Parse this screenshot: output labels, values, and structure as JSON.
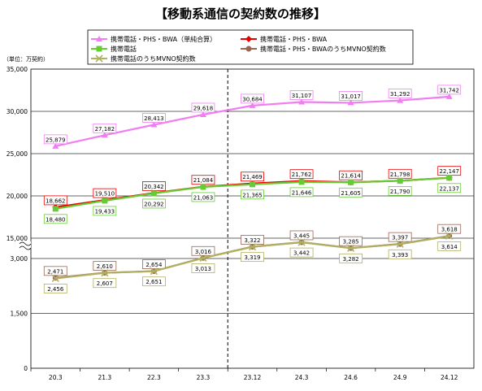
{
  "title": "【移動系通信の契約数の推移】",
  "unit_label": "（単位：万契約）",
  "chart_data": {
    "type": "line",
    "title": "【移動系通信の契約数の推移】",
    "ylabel": "（単位：万契約）",
    "categories": [
      "20.3",
      "21.3",
      "22.3",
      "23.3",
      "23.12",
      "24.3",
      "24.6",
      "24.9",
      "24.12"
    ],
    "ylim": [
      0,
      35000
    ],
    "axis_break": {
      "below": [
        0,
        3000
      ],
      "above": [
        15000,
        35000
      ]
    },
    "y_ticks": [
      {
        "value": 0,
        "label": "0"
      },
      {
        "value": 1500,
        "label": "1,500"
      },
      {
        "value": 3000,
        "label": "3,000"
      },
      {
        "value": 15000,
        "label": "15,000"
      },
      {
        "value": 20000,
        "label": "20,000"
      },
      {
        "value": 25000,
        "label": "25,000"
      },
      {
        "value": 30000,
        "label": "30,000"
      },
      {
        "value": 35000,
        "label": "35,000"
      }
    ],
    "divider_after_category": "23.3",
    "grid": true,
    "legend_position": "top",
    "series": [
      {
        "name": "携帯電話・PHS・BWA（単純合算）",
        "color": "#f07ef0",
        "marker": "triangle",
        "values": [
          25879,
          27182,
          28413,
          29618,
          30684,
          31107,
          31017,
          31292,
          31742
        ],
        "labels": [
          "25,879",
          "27,182",
          "28,413",
          "29,618",
          "30,684",
          "31,107",
          "31,017",
          "31,292",
          "31,742"
        ]
      },
      {
        "name": "携帯電話・PHS・BWA",
        "color": "#e60000",
        "marker": "diamond",
        "values": [
          18662,
          19510,
          20342,
          21084,
          21469,
          21762,
          21614,
          21798,
          22147
        ],
        "labels": [
          "18,662",
          "19,510",
          "20,342",
          "21,084",
          "21,469",
          "21,762",
          "21,614",
          "21,798",
          "22,147"
        ]
      },
      {
        "name": "携帯電話",
        "color": "#66cc33",
        "marker": "square",
        "values": [
          18480,
          19433,
          20292,
          21063,
          21365,
          21646,
          21605,
          21790,
          22137
        ],
        "labels": [
          "18,480",
          "19,433",
          "20,292",
          "21,063",
          "21,365",
          "21,646",
          "21,605",
          "21,790",
          "22,137"
        ]
      },
      {
        "name": "携帯電話・PHS・BWAのうちMVNO契約数",
        "color": "#996655",
        "marker": "circle",
        "values": [
          2471,
          2610,
          2654,
          3016,
          3322,
          3445,
          3285,
          3397,
          3618
        ],
        "labels": [
          "2,471",
          "2,610",
          "2,654",
          "3,016",
          "3,322",
          "3,445",
          "3,285",
          "3,397",
          "3,618"
        ]
      },
      {
        "name": "携帯電話のうちMVNO契約数",
        "color": "#b0b060",
        "marker": "x",
        "values": [
          2456,
          2607,
          2651,
          3013,
          3319,
          3442,
          3282,
          3393,
          3614
        ],
        "labels": [
          "2,456",
          "2,607",
          "2,651",
          "3,013",
          "3,319",
          "3,442",
          "3,282",
          "3,393",
          "3,614"
        ]
      }
    ]
  }
}
